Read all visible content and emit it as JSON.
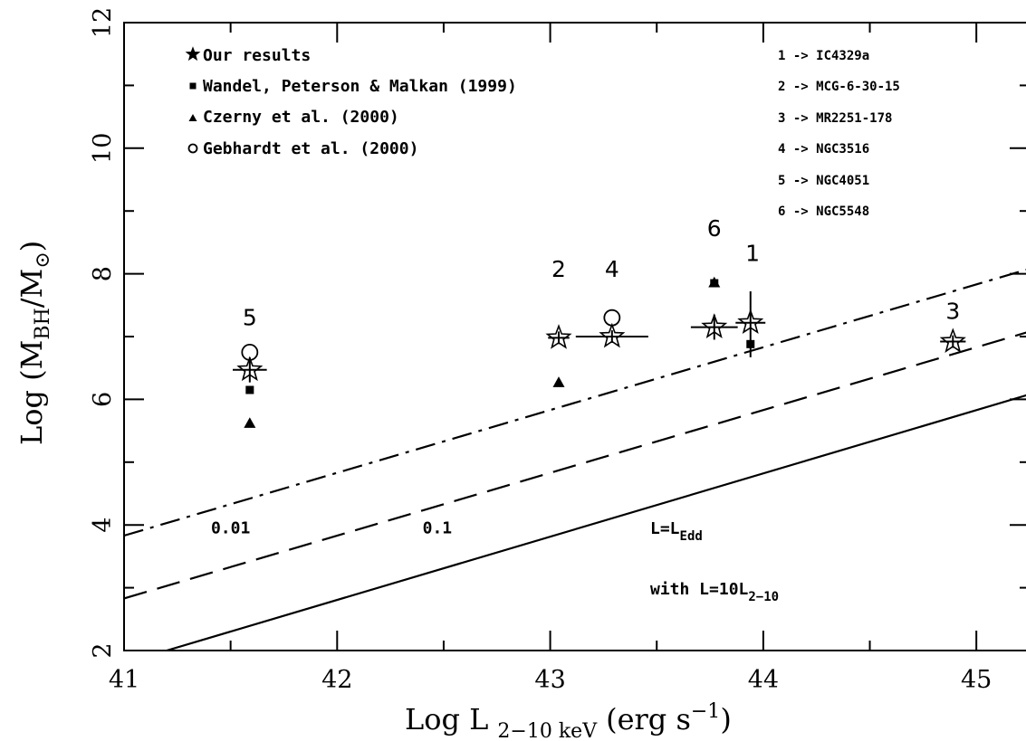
{
  "chart_data": {
    "type": "scatter",
    "xlabel_main": "Log L",
    "xlabel_sub": "2−10 keV",
    "xlabel_unit": "(erg s",
    "xlabel_sup": "−1",
    "xlabel_close": ")",
    "ylabel_main": "Log (M",
    "ylabel_sub1": "BH",
    "ylabel_mid": "/M",
    "ylabel_sub2": "⊙",
    "ylabel_close": ")",
    "xlim": [
      41,
      45.25
    ],
    "ylim": [
      2,
      12
    ],
    "xticks": [
      41,
      42,
      43,
      44,
      45
    ],
    "yticks": [
      2,
      4,
      6,
      8,
      10,
      12
    ],
    "legend": [
      {
        "marker": "star",
        "label": "Our results"
      },
      {
        "marker": "square",
        "label": "Wandel, Peterson & Malkan (1999)"
      },
      {
        "marker": "triangle",
        "label": "Czerny et al. (2000)"
      },
      {
        "marker": "circle",
        "label": "Gebhardt et al. (2000)"
      }
    ],
    "key": [
      "1 -> IC4329a",
      "2 -> MCG-6-30-15",
      "3 -> MR2251-178",
      "4 -> NGC3516",
      "5 -> NGC4051",
      "6 -> NGC5548"
    ],
    "stars": [
      {
        "id": "1",
        "x": 43.94,
        "y": 7.22,
        "xerr": 0.07,
        "yerr_lo": 0.55,
        "yerr_hi": 0.5
      },
      {
        "id": "2",
        "x": 43.04,
        "y": 6.98,
        "xerr": 0.05,
        "yerr_lo": 0.1,
        "yerr_hi": 0.1
      },
      {
        "id": "3",
        "x": 44.89,
        "y": 6.92,
        "xerr": 0.06,
        "yerr_lo": 0.1,
        "yerr_hi": 0.1
      },
      {
        "id": "4",
        "x": 43.29,
        "y": 7.0,
        "xerr": 0.17,
        "yerr_lo": 0.1,
        "yerr_hi": 0.1
      },
      {
        "id": "5",
        "x": 41.59,
        "y": 6.47,
        "xerr": 0.08,
        "yerr_lo": 0.2,
        "yerr_hi": 0.2
      },
      {
        "id": "6",
        "x": 43.77,
        "y": 7.15,
        "xerr": 0.11,
        "yerr_lo": 0.2,
        "yerr_hi": 0.2
      }
    ],
    "squares": [
      {
        "id": "1",
        "x": 43.94,
        "y": 6.88
      },
      {
        "id": "5",
        "x": 41.59,
        "y": 6.15
      },
      {
        "id": "6",
        "x": 43.77,
        "y": 7.85
      }
    ],
    "triangles": [
      {
        "id": "2",
        "x": 43.04,
        "y": 6.28
      },
      {
        "id": "5",
        "x": 41.59,
        "y": 5.63
      },
      {
        "id": "6",
        "x": 43.77,
        "y": 7.87
      }
    ],
    "circles": [
      {
        "id": "4",
        "x": 43.29,
        "y": 7.3
      },
      {
        "id": "5",
        "x": 41.59,
        "y": 6.75
      }
    ],
    "object_labels": [
      {
        "text": "1",
        "x": 43.95,
        "y": 8.2
      },
      {
        "text": "2",
        "x": 43.04,
        "y": 7.95
      },
      {
        "text": "3",
        "x": 44.89,
        "y": 7.28
      },
      {
        "text": "4",
        "x": 43.29,
        "y": 7.95
      },
      {
        "text": "5",
        "x": 41.59,
        "y": 7.18
      },
      {
        "text": "6",
        "x": 43.77,
        "y": 8.6
      }
    ],
    "lines": [
      {
        "style": "solid",
        "x": [
          41.2,
          45.25
        ],
        "y": [
          2.0,
          6.08
        ]
      },
      {
        "style": "dash",
        "x": [
          41.0,
          45.25
        ],
        "y": [
          2.83,
          7.08
        ]
      },
      {
        "style": "dashdot",
        "x": [
          41.0,
          45.25
        ],
        "y": [
          3.83,
          8.08
        ]
      }
    ],
    "line_labels": [
      {
        "text": "0.01",
        "x": 41.5,
        "y": 3.95
      },
      {
        "text": "0.1",
        "x": 42.47,
        "y": 3.95
      }
    ],
    "annotation": {
      "l_main": "L=L",
      "l_sub": "Edd",
      "with_main": "with L=10L",
      "with_sub": "2−10"
    }
  }
}
